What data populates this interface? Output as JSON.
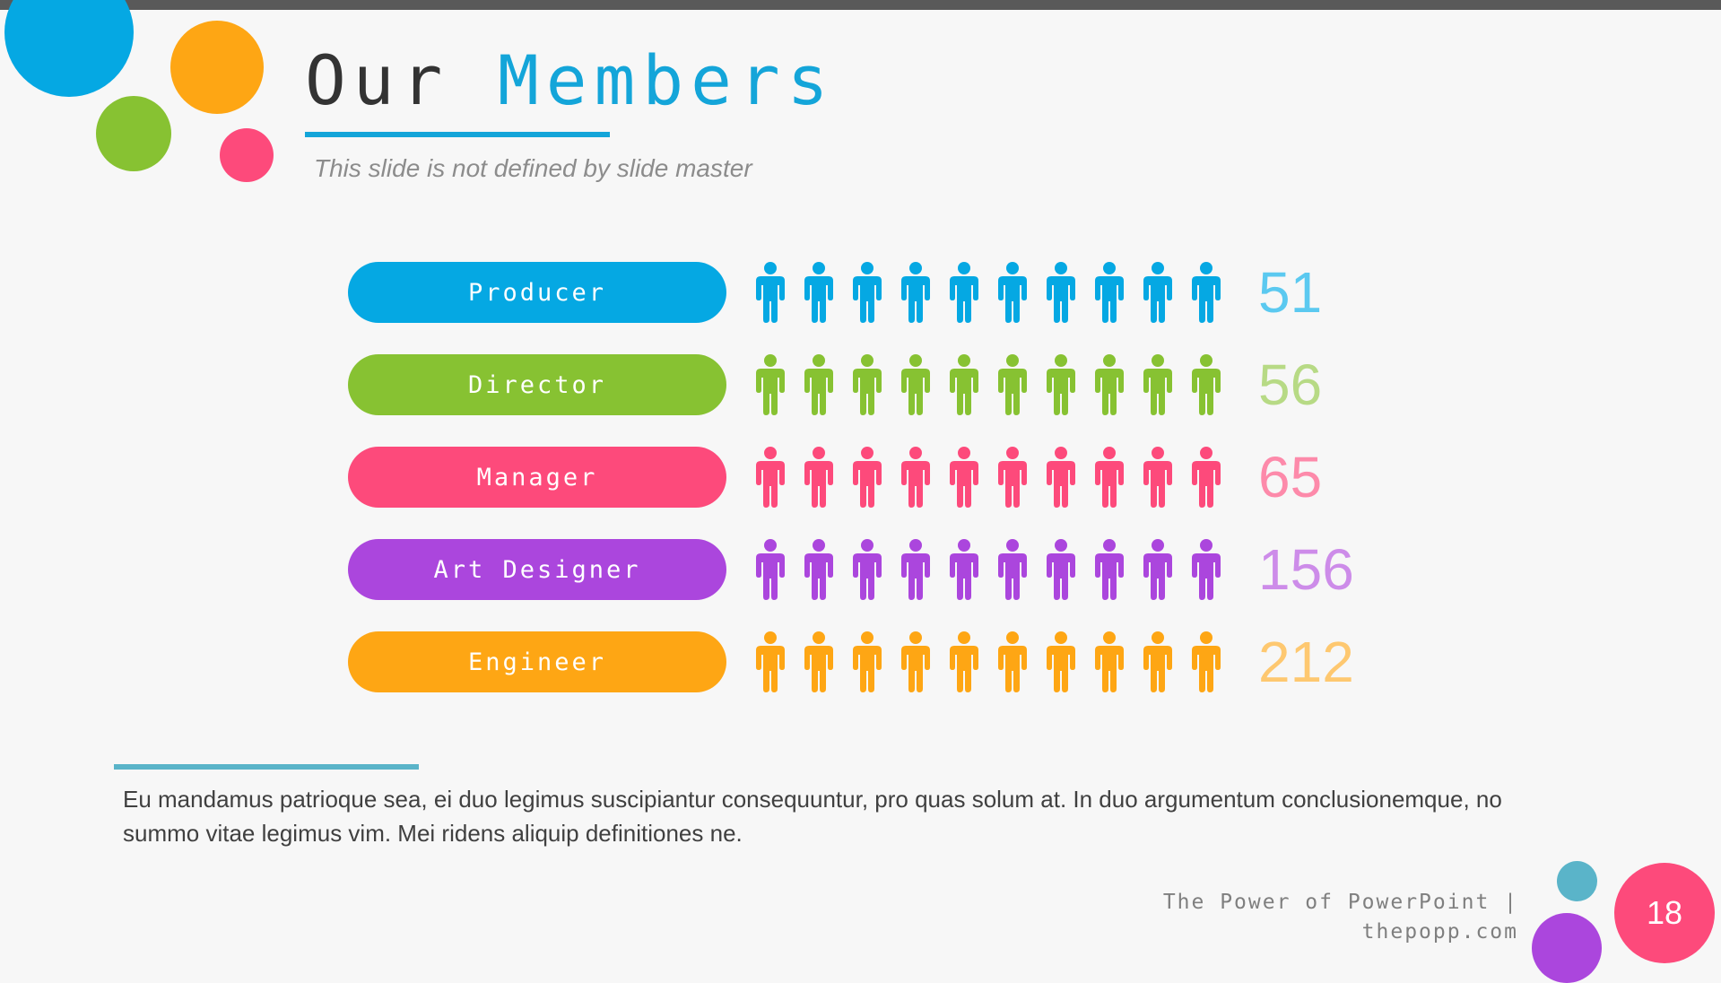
{
  "slide": {
    "title_part1": "Our",
    "title_part2": "Members",
    "subtitle": "This slide is not defined by slide master",
    "body_text": "Eu mandamus patrioque sea, ei duo legimus suscipiantur consequuntur, pro quas solum at. In duo argumentum conclusionemque, no summo vitae legimus vim. Mei ridens aliquip definitiones ne.",
    "footer_line1": "The Power of PowerPoint |",
    "footer_line2": "thepopp.com",
    "page_number": "18"
  },
  "members": [
    {
      "role": "Producer",
      "count": "51",
      "color": "#05a8e3",
      "count_color": "#5bc9f0",
      "icon": "person-icon",
      "icons": 10
    },
    {
      "role": "Director",
      "count": "56",
      "color": "#87c232",
      "count_color": "#b7da85",
      "icon": "person-icon",
      "icons": 10
    },
    {
      "role": "Manager",
      "count": "65",
      "color": "#fd4a7b",
      "count_color": "#fd8aaa",
      "icon": "person-icon",
      "icons": 10
    },
    {
      "role": "Art Designer",
      "count": "156",
      "color": "#ab46dd",
      "count_color": "#cd8ce9",
      "icon": "person-icon",
      "icons": 10
    },
    {
      "role": "Engineer",
      "count": "212",
      "color": "#fea614",
      "count_color": "#fec870",
      "icon": "person-icon",
      "icons": 10
    }
  ],
  "colors": {
    "accent_blue": "#05a8e3",
    "accent_green": "#87c232",
    "accent_pink": "#fd4a7b",
    "accent_purple": "#ab46dd",
    "accent_orange": "#fea614",
    "accent_teal": "#5ab4c9"
  }
}
